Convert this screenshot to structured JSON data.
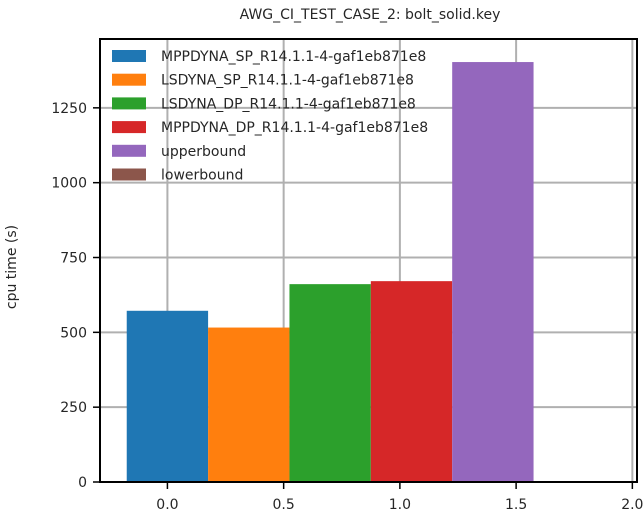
{
  "chart_data": {
    "type": "bar",
    "title": "AWG_CI_TEST_CASE_2: bolt_solid.key",
    "xlabel": "",
    "ylabel": "cpu time (s)",
    "xlim": [
      -0.29,
      2.02
    ],
    "ylim": [
      0,
      1480
    ],
    "xticks": [
      0.0,
      0.5,
      1.0,
      1.5,
      2.0
    ],
    "xtick_labels": [
      "0.0",
      "0.5",
      "1.0",
      "1.5",
      "2.0"
    ],
    "yticks": [
      0,
      250,
      500,
      750,
      1000,
      1250
    ],
    "ytick_labels": [
      "0",
      "250",
      "500",
      "750",
      "1000",
      "1250"
    ],
    "grid": true,
    "legend_position": "upper-left",
    "bar_width": 0.35,
    "series": [
      {
        "name": "MPPDYNA_SP_R14.1.1-4-gaf1eb871e8",
        "x": 0.0,
        "value": 572,
        "color": "#1f77b4"
      },
      {
        "name": "LSDYNA_SP_R14.1.1-4-gaf1eb871e8",
        "x": 0.35,
        "value": 516,
        "color": "#ff7f0e"
      },
      {
        "name": "LSDYNA_DP_R14.1.1-4-gaf1eb871e8",
        "x": 0.7,
        "value": 661,
        "color": "#2ca02c"
      },
      {
        "name": "MPPDYNA_DP_R14.1.1-4-gaf1eb871e8",
        "x": 1.05,
        "value": 671,
        "color": "#d62728"
      },
      {
        "name": "upperbound",
        "x": 1.4,
        "value": 1403,
        "color": "#9467bd"
      },
      {
        "name": "lowerbound",
        "x": 1.75,
        "value": 0,
        "color": "#8c564b"
      }
    ]
  }
}
